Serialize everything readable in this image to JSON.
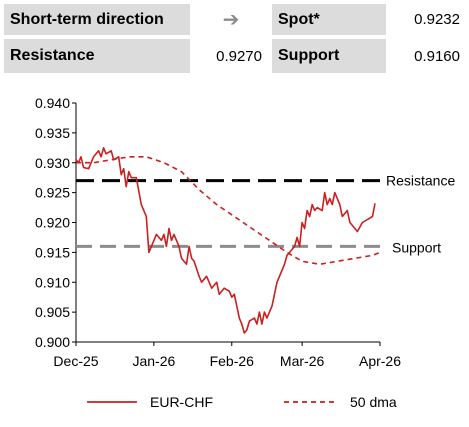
{
  "header": {
    "direction_label": "Short-term direction",
    "direction_icon": "arrow-right-icon",
    "direction_arrow": "➔",
    "spot_label": "Spot*",
    "spot_value": "0.9232",
    "resistance_label": "Resistance",
    "resistance_value": "0.9270",
    "support_label": "Support",
    "support_value": "0.9160"
  },
  "chart_data": {
    "type": "line",
    "title": "",
    "xlabel": "",
    "ylabel": "",
    "ylim": [
      0.9,
      0.94
    ],
    "y_ticks": [
      0.9,
      0.905,
      0.91,
      0.915,
      0.92,
      0.925,
      0.93,
      0.935,
      0.94
    ],
    "y_tick_labels": [
      "0.900",
      "0.905",
      "0.910",
      "0.915",
      "0.920",
      "0.925",
      "0.930",
      "0.935",
      "0.940"
    ],
    "x_tick_labels": [
      "Dec-25",
      "Jan-26",
      "Feb-26",
      "Mar-26",
      "Apr-26"
    ],
    "x_tick_dates": [
      "2025-12-01",
      "2026-01-01",
      "2026-02-01",
      "2026-03-01",
      "2026-04-01"
    ],
    "x_range": [
      "2025-12-01",
      "2026-04-01"
    ],
    "grid": false,
    "legend_position": "bottom",
    "series": [
      {
        "name": "EUR-CHF",
        "style": "solid",
        "color": "#cc1f1f",
        "points": [
          [
            "2025-12-01",
            0.9305
          ],
          [
            "2025-12-02",
            0.93
          ],
          [
            "2025-12-03",
            0.931
          ],
          [
            "2025-12-04",
            0.9292
          ],
          [
            "2025-12-06",
            0.929
          ],
          [
            "2025-12-08",
            0.931
          ],
          [
            "2025-12-10",
            0.932
          ],
          [
            "2025-12-11",
            0.931
          ],
          [
            "2025-12-12",
            0.9325
          ],
          [
            "2025-12-13",
            0.9315
          ],
          [
            "2025-12-15",
            0.932
          ],
          [
            "2025-12-16",
            0.9305
          ],
          [
            "2025-12-18",
            0.931
          ],
          [
            "2025-12-19",
            0.928
          ],
          [
            "2025-12-20",
            0.929
          ],
          [
            "2025-12-21",
            0.926
          ],
          [
            "2025-12-22",
            0.9285
          ],
          [
            "2025-12-23",
            0.9275
          ],
          [
            "2025-12-25",
            0.9275
          ],
          [
            "2025-12-27",
            0.923
          ],
          [
            "2025-12-29",
            0.921
          ],
          [
            "2025-12-30",
            0.915
          ],
          [
            "2025-12-31",
            0.916
          ],
          [
            "2026-01-01",
            0.917
          ],
          [
            "2026-01-02",
            0.918
          ],
          [
            "2026-01-04",
            0.917
          ],
          [
            "2026-01-05",
            0.918
          ],
          [
            "2026-01-06",
            0.916
          ],
          [
            "2026-01-07",
            0.919
          ],
          [
            "2026-01-08",
            0.917
          ],
          [
            "2026-01-09",
            0.918
          ],
          [
            "2026-01-11",
            0.916
          ],
          [
            "2026-01-12",
            0.914
          ],
          [
            "2026-01-14",
            0.913
          ],
          [
            "2026-01-15",
            0.916
          ],
          [
            "2026-01-16",
            0.914
          ],
          [
            "2026-01-17",
            0.9135
          ],
          [
            "2026-01-19",
            0.911
          ],
          [
            "2026-01-20",
            0.91
          ],
          [
            "2026-01-22",
            0.911
          ],
          [
            "2026-01-24",
            0.909
          ],
          [
            "2026-01-26",
            0.91
          ],
          [
            "2026-01-27",
            0.908
          ],
          [
            "2026-01-29",
            0.909
          ],
          [
            "2026-01-31",
            0.9085
          ],
          [
            "2026-02-01",
            0.9075
          ],
          [
            "2026-02-02",
            0.908
          ],
          [
            "2026-02-03",
            0.906
          ],
          [
            "2026-02-04",
            0.904
          ],
          [
            "2026-02-05",
            0.903
          ],
          [
            "2026-02-06",
            0.9015
          ],
          [
            "2026-02-07",
            0.902
          ],
          [
            "2026-02-08",
            0.9035
          ],
          [
            "2026-02-10",
            0.904
          ],
          [
            "2026-02-11",
            0.903
          ],
          [
            "2026-02-12",
            0.905
          ],
          [
            "2026-02-13",
            0.903
          ],
          [
            "2026-02-14",
            0.905
          ],
          [
            "2026-02-15",
            0.904
          ],
          [
            "2026-02-17",
            0.906
          ],
          [
            "2026-02-18",
            0.908
          ],
          [
            "2026-02-19",
            0.91
          ],
          [
            "2026-02-20",
            0.911
          ],
          [
            "2026-02-21",
            0.912
          ],
          [
            "2026-02-22",
            0.913
          ],
          [
            "2026-02-23",
            0.9145
          ],
          [
            "2026-02-24",
            0.915
          ],
          [
            "2026-02-26",
            0.916
          ],
          [
            "2026-02-27",
            0.9175
          ],
          [
            "2026-02-28",
            0.916
          ],
          [
            "2026-03-01",
            0.92
          ],
          [
            "2026-03-02",
            0.919
          ],
          [
            "2026-03-03",
            0.922
          ],
          [
            "2026-03-04",
            0.921
          ],
          [
            "2026-03-05",
            0.923
          ],
          [
            "2026-03-06",
            0.922
          ],
          [
            "2026-03-07",
            0.9225
          ],
          [
            "2026-03-09",
            0.922
          ],
          [
            "2026-03-10",
            0.925
          ],
          [
            "2026-03-11",
            0.923
          ],
          [
            "2026-03-12",
            0.924
          ],
          [
            "2026-03-13",
            0.923
          ],
          [
            "2026-03-14",
            0.925
          ],
          [
            "2026-03-16",
            0.923
          ],
          [
            "2026-03-17",
            0.921
          ],
          [
            "2026-03-19",
            0.922
          ],
          [
            "2026-03-20",
            0.92
          ],
          [
            "2026-03-22",
            0.919
          ],
          [
            "2026-03-23",
            0.9185
          ],
          [
            "2026-03-25",
            0.92
          ],
          [
            "2026-03-27",
            0.9205
          ],
          [
            "2026-03-29",
            0.921
          ],
          [
            "2026-03-30",
            0.9232
          ]
        ]
      },
      {
        "name": "50 dma",
        "style": "dashed",
        "color": "#cc1f1f",
        "points": [
          [
            "2025-12-01",
            0.93
          ],
          [
            "2025-12-08",
            0.93
          ],
          [
            "2025-12-15",
            0.9305
          ],
          [
            "2025-12-22",
            0.931
          ],
          [
            "2025-12-29",
            0.931
          ],
          [
            "2026-01-05",
            0.93
          ],
          [
            "2026-01-12",
            0.9285
          ],
          [
            "2026-01-19",
            0.9255
          ],
          [
            "2026-01-26",
            0.923
          ],
          [
            "2026-02-02",
            0.921
          ],
          [
            "2026-02-09",
            0.919
          ],
          [
            "2026-02-16",
            0.917
          ],
          [
            "2026-02-23",
            0.915
          ],
          [
            "2026-03-01",
            0.9135
          ],
          [
            "2026-03-08",
            0.913
          ],
          [
            "2026-03-15",
            0.9135
          ],
          [
            "2026-03-22",
            0.914
          ],
          [
            "2026-03-29",
            0.9145
          ],
          [
            "2026-04-01",
            0.915
          ]
        ]
      }
    ],
    "reference_lines": [
      {
        "name": "Resistance",
        "value": 0.927,
        "color": "#000000"
      },
      {
        "name": "Support",
        "value": 0.916,
        "color": "#8c8c8c"
      }
    ]
  }
}
